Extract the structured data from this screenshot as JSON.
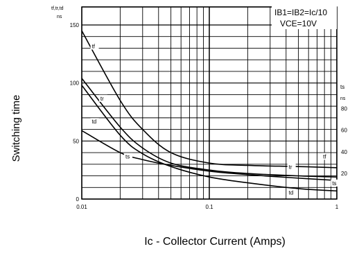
{
  "chart_data": {
    "type": "line",
    "x_scale": "log",
    "xlim": [
      0.01,
      1
    ],
    "ylim_left": [
      0,
      150
    ],
    "ylim_right": [
      0,
      300
    ],
    "x_ticks": [
      "0.01",
      "0.1",
      "1"
    ],
    "y_ticks_left": [
      "0",
      "50",
      "100",
      "150"
    ],
    "y_ticks_right": [
      "20",
      "40",
      "60",
      "80"
    ],
    "y_units_left": "tf,tr,td\nns",
    "y_units_right": "ts\nns",
    "ylabel": "Switching time",
    "xlabel": "Ic - Collector Current (Amps)",
    "conditions": [
      "IB1=IB2=Ic/10",
      "VCE=10V"
    ],
    "grid": true,
    "series": [
      {
        "name": "tf",
        "x": [
          0.01,
          0.02,
          0.03,
          0.05,
          0.1,
          0.2,
          0.5,
          1
        ],
        "y": [
          145,
          85,
          60,
          40,
          31,
          29,
          28,
          27
        ]
      },
      {
        "name": "tr",
        "x": [
          0.01,
          0.02,
          0.03,
          0.05,
          0.1,
          0.2,
          0.5,
          1
        ],
        "y": [
          104,
          62,
          44,
          31,
          25,
          22,
          20,
          19
        ]
      },
      {
        "name": "td",
        "x": [
          0.01,
          0.02,
          0.03,
          0.05,
          0.1,
          0.2,
          0.5,
          1
        ],
        "y": [
          98,
          55,
          39,
          28,
          19,
          14,
          9,
          7
        ]
      },
      {
        "name": "ts",
        "x": [
          0.01,
          0.02,
          0.03,
          0.05,
          0.1,
          0.2,
          0.5,
          1
        ],
        "y": [
          59,
          40,
          34,
          29,
          24,
          21,
          18,
          16
        ]
      }
    ],
    "label_pos": {
      "tf": [
        [
          0.012,
          130
        ],
        [
          0.78,
          35
        ]
      ],
      "tr": [
        [
          0.014,
          85
        ],
        [
          0.42,
          26
        ]
      ],
      "td": [
        [
          0.012,
          65
        ],
        [
          0.42,
          4
        ]
      ],
      "ts": [
        [
          0.022,
          35
        ],
        [
          0.92,
          12
        ]
      ]
    }
  }
}
